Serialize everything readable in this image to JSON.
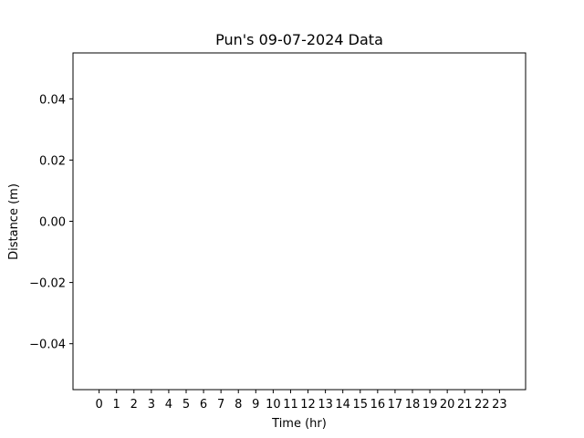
{
  "chart_data": {
    "type": "line",
    "title": "Pun's 09-07-2024 Data",
    "xlabel": "Time (hr)",
    "ylabel": "Distance (m)",
    "x_ticks": [
      "0",
      "1",
      "2",
      "3",
      "4",
      "5",
      "6",
      "7",
      "8",
      "9",
      "10",
      "11",
      "12",
      "13",
      "14",
      "15",
      "16",
      "17",
      "18",
      "19",
      "20",
      "21",
      "22",
      "23"
    ],
    "y_ticks": [
      "0.04",
      "0.02",
      "0.00",
      "−0.02",
      "−0.04"
    ],
    "y_tick_values": [
      0.04,
      0.02,
      0.0,
      -0.02,
      -0.04
    ],
    "xlim": [
      -1.5,
      24.5
    ],
    "ylim": [
      -0.055,
      0.055
    ],
    "grid": false,
    "series": []
  }
}
